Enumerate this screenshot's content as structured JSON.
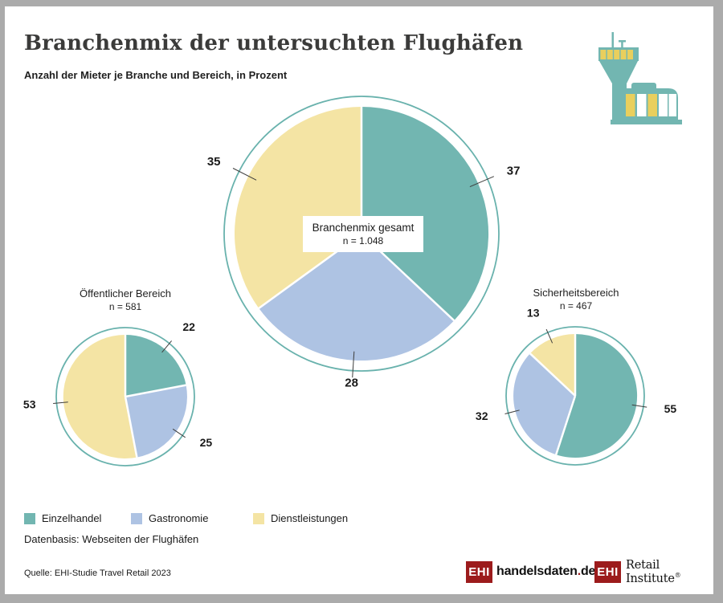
{
  "page": {
    "title": "Branchenmix der untersuchten Flughäfen",
    "subtitle": "Anzahl der Mieter je Branche und Bereich, in Prozent",
    "datenbasis": "Datenbasis: Webseiten der Flughäfen",
    "quelle": "Quelle: EHI-Studie Travel Retail 2023"
  },
  "colors": {
    "einzelhandel": "#72b6b1",
    "gastronomie": "#aec3e3",
    "dienstleistungen": "#f4e4a4",
    "ring": "#69b2ad",
    "icon_teal": "#72b6b1",
    "icon_yellow": "#e9cf5d",
    "icon_white": "#ffffff",
    "ehi_red": "#9c1b1c",
    "frame_gray": "#ababab"
  },
  "legend": {
    "items": [
      {
        "label": "Einzelhandel",
        "color": "#72b6b1"
      },
      {
        "label": "Gastronomie",
        "color": "#aec3e3"
      },
      {
        "label": "Dienstleistungen",
        "color": "#f4e4a4"
      }
    ]
  },
  "logos": {
    "handelsdaten": {
      "badge": "EHI",
      "name": "handelsdaten",
      "dot": ".",
      "tld": "de"
    },
    "retail": {
      "badge": "EHI",
      "name": "Retail Institute",
      "reg": "®"
    }
  },
  "chart_data": [
    {
      "type": "pie",
      "name": "Branchenmix gesamt",
      "n": "n = 1.048",
      "categories": [
        "Einzelhandel",
        "Gastronomie",
        "Dienstleistungen"
      ],
      "values": [
        37,
        28,
        35
      ],
      "colors": [
        "#72b6b1",
        "#aec3e3",
        "#f4e4a4"
      ],
      "unit": "percent",
      "start_angle": "12:00",
      "direction": "clockwise"
    },
    {
      "type": "pie",
      "name": "Öffentlicher Bereich",
      "n": "n = 581",
      "categories": [
        "Einzelhandel",
        "Gastronomie",
        "Dienstleistungen"
      ],
      "values": [
        22,
        25,
        53
      ],
      "colors": [
        "#72b6b1",
        "#aec3e3",
        "#f4e4a4"
      ],
      "unit": "percent",
      "start_angle": "12:00",
      "direction": "clockwise"
    },
    {
      "type": "pie",
      "name": "Sicherheitsbereich",
      "n": "n = 467",
      "categories": [
        "Einzelhandel",
        "Gastronomie",
        "Dienstleistungen"
      ],
      "values": [
        55,
        32,
        13
      ],
      "colors": [
        "#72b6b1",
        "#aec3e3",
        "#f4e4a4"
      ],
      "unit": "percent",
      "start_angle": "12:00",
      "direction": "clockwise"
    }
  ]
}
